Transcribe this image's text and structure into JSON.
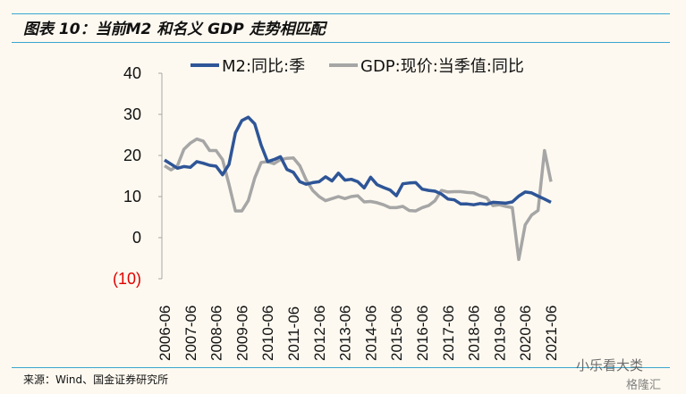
{
  "title": "图表 10：当前M2 和名义 GDP 走势相匹配",
  "source": "来源：Wind、国金证券研究所",
  "watermark": {
    "wechat": "小乐看大类",
    "logo": "格隆汇"
  },
  "colors": {
    "m2": "#2e5597",
    "gdp": "#a6a6a6",
    "rule": "#3aa6cf",
    "negative_tick": "#e00000"
  },
  "chart_data": {
    "type": "line",
    "title": "",
    "xlabel": "",
    "ylabel": "",
    "ylim": [
      -10,
      40
    ],
    "yticks": [
      40,
      30,
      20,
      10,
      0,
      -10
    ],
    "ytick_labels": [
      "40",
      "30",
      "20",
      "10",
      "0",
      "(10)"
    ],
    "xtick_labels": [
      "2006-06",
      "2007-06",
      "2008-06",
      "2009-06",
      "2010-06",
      "2011-06",
      "2012-06",
      "2013-06",
      "2014-06",
      "2015-06",
      "2016-06",
      "2017-06",
      "2018-06",
      "2019-06",
      "2020-06",
      "2021-06"
    ],
    "x_frequency": "quarterly, 2006-06 to 2021-06",
    "grid": false,
    "legend": "top",
    "series": [
      {
        "name": "M2:同比:季",
        "color": "#2e5597",
        "values": [
          18.9,
          17.9,
          16.9,
          17.3,
          17.1,
          18.5,
          18.1,
          17.6,
          17.4,
          15.3,
          17.8,
          25.5,
          28.5,
          29.3,
          27.7,
          22.5,
          18.5,
          19.0,
          19.7,
          16.6,
          15.9,
          13.6,
          13.0,
          13.4,
          13.6,
          14.8,
          13.8,
          15.7,
          14.0,
          14.2,
          13.6,
          12.1,
          14.7,
          12.9,
          12.2,
          11.6,
          10.2,
          13.1,
          13.3,
          13.4,
          11.8,
          11.5,
          11.3,
          10.6,
          9.4,
          9.2,
          8.2,
          8.2,
          8.0,
          8.3,
          8.1,
          8.6,
          8.5,
          8.4,
          8.7,
          10.1,
          11.1,
          10.9,
          10.1,
          9.4,
          8.6
        ]
      },
      {
        "name": "GDP:现价:当季值:同比",
        "color": "#a6a6a6",
        "values": [
          17.5,
          16.5,
          17.5,
          21.5,
          23.0,
          24.0,
          23.5,
          21.2,
          21.2,
          19.0,
          13.0,
          6.5,
          6.5,
          9.0,
          14.5,
          18.3,
          18.5,
          18.0,
          19.0,
          19.3,
          19.4,
          17.5,
          14.0,
          11.5,
          10.0,
          9.0,
          9.5,
          10.0,
          9.5,
          10.0,
          10.2,
          8.7,
          8.8,
          8.5,
          8.0,
          7.3,
          7.3,
          7.6,
          6.6,
          6.5,
          7.3,
          7.8,
          9.0,
          11.5,
          11.1,
          11.2,
          11.2,
          11.0,
          10.9,
          10.2,
          9.7,
          7.8,
          8.0,
          7.6,
          7.3,
          -5.3,
          3.1,
          5.5,
          6.6,
          21.2,
          13.6
        ]
      }
    ]
  }
}
